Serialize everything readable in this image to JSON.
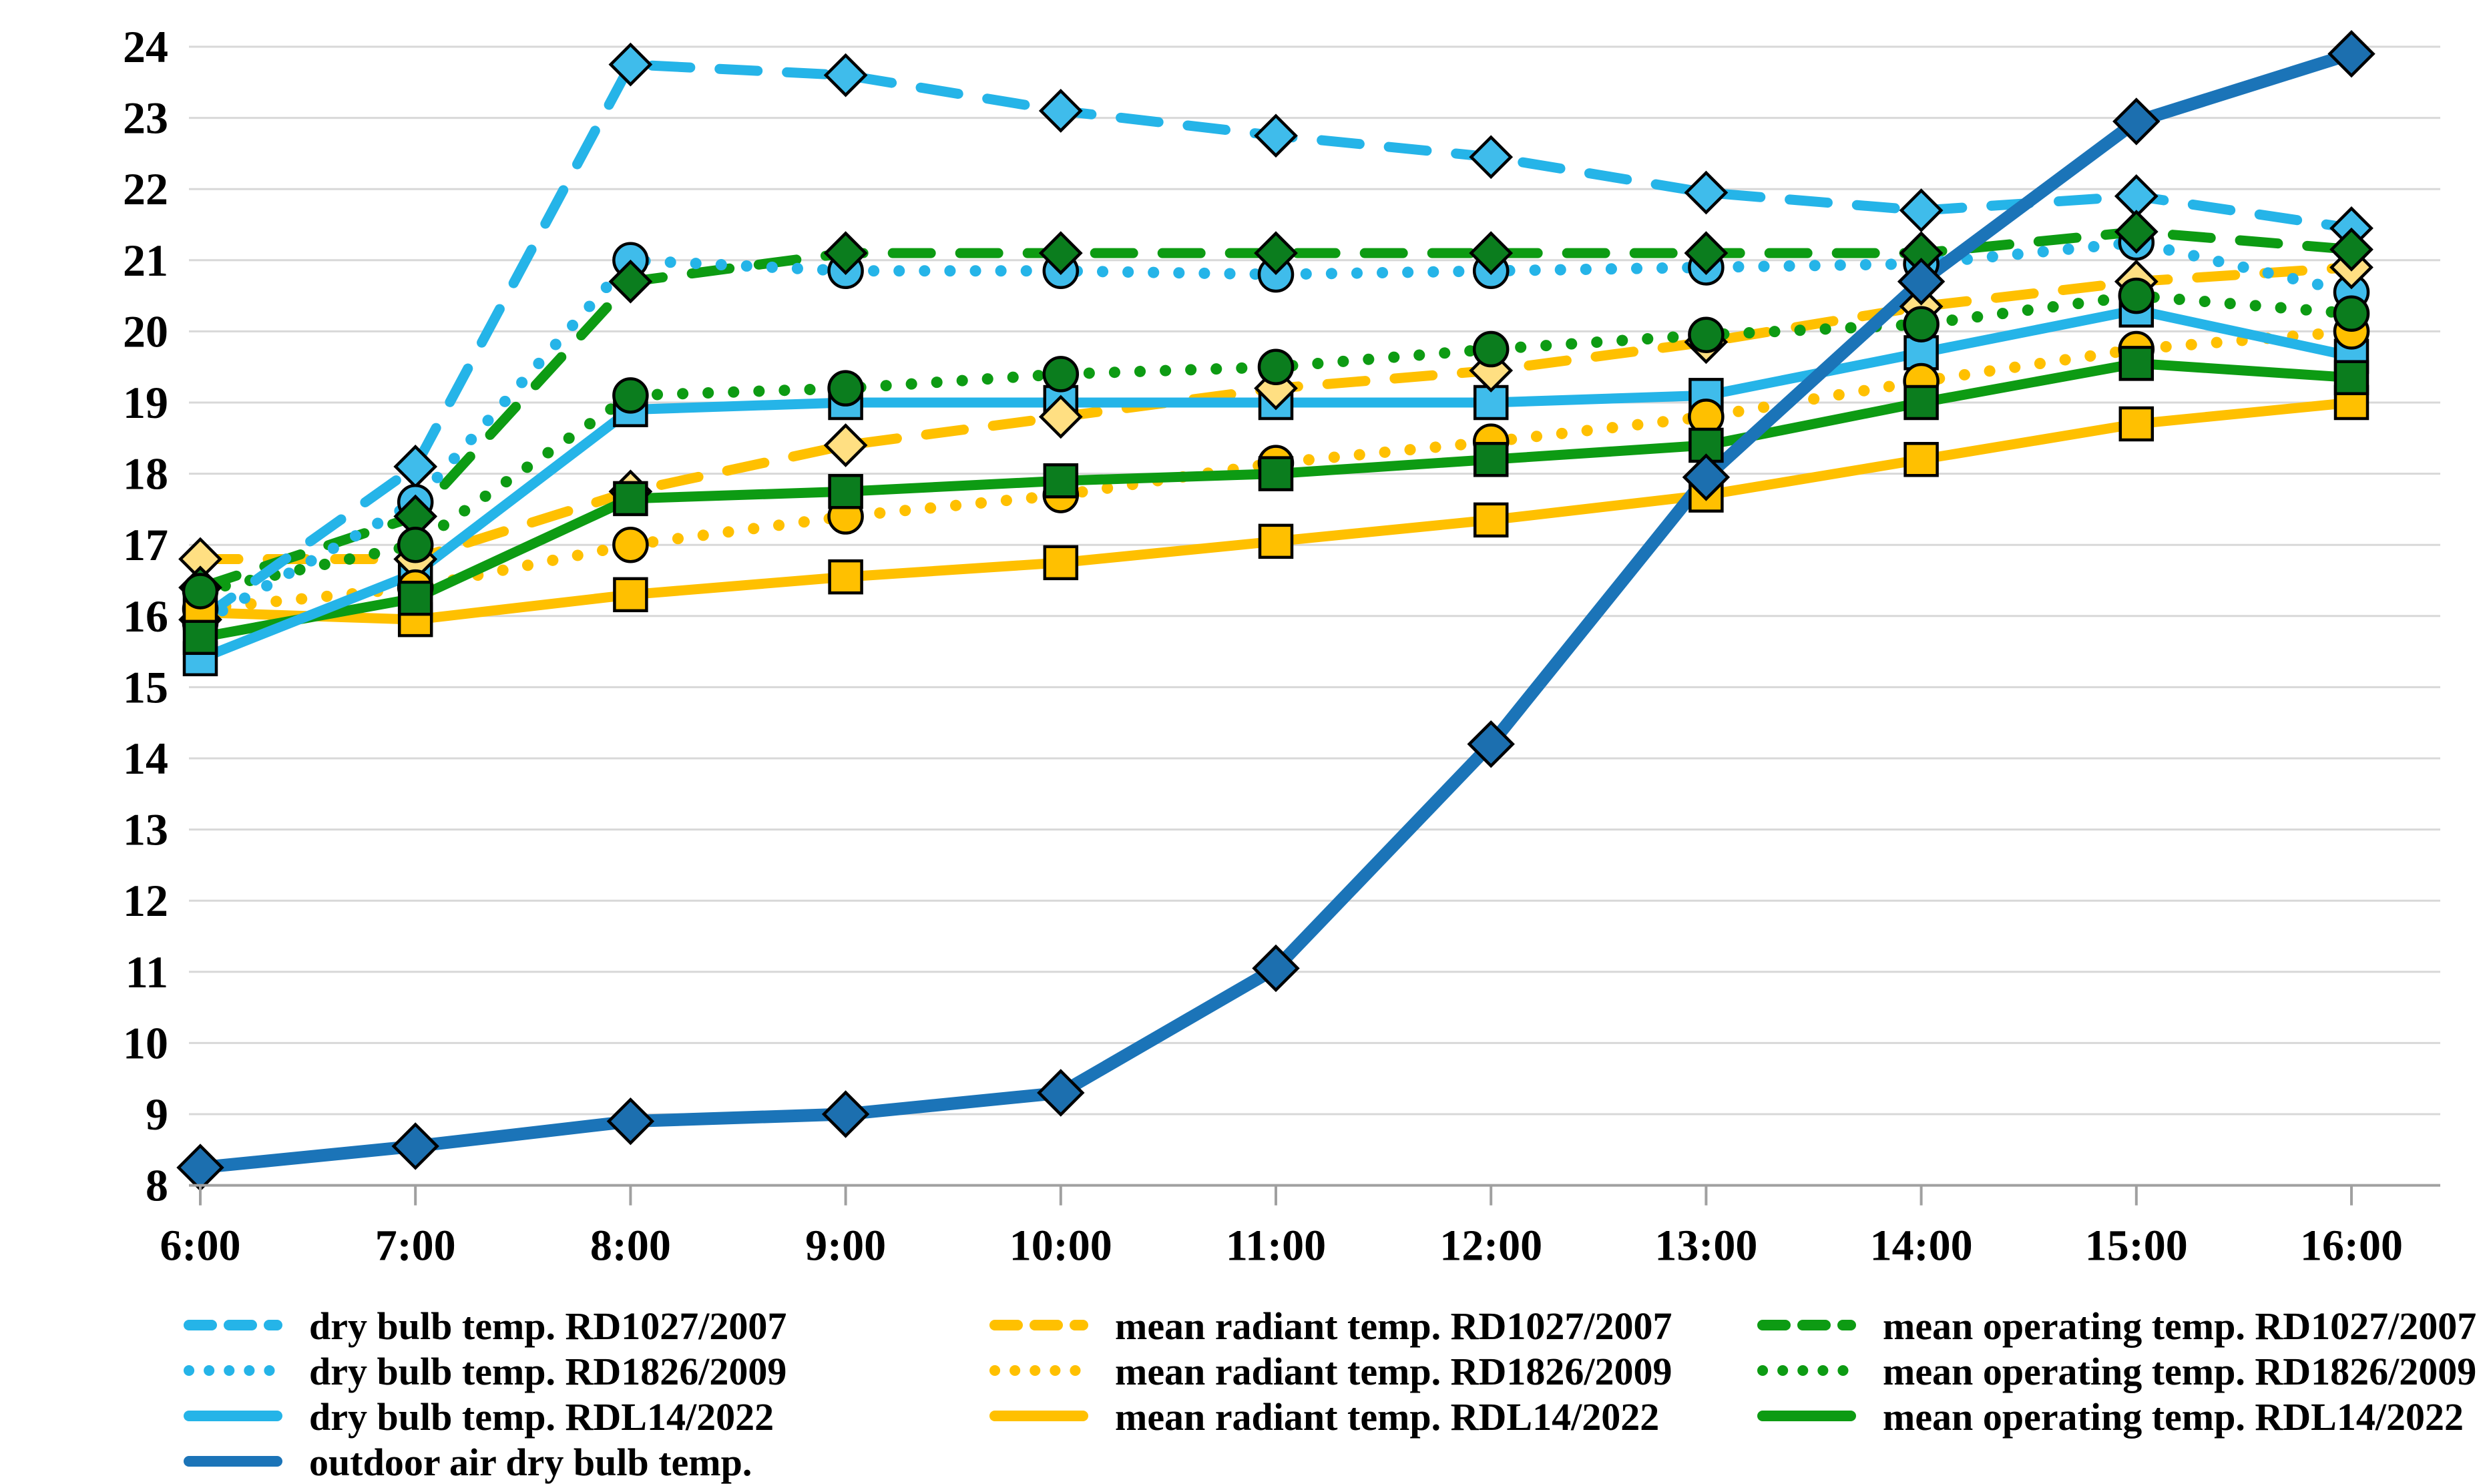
{
  "chart_data": {
    "type": "line",
    "title": "",
    "xlabel": "",
    "ylabel": "",
    "x_labels": [
      "6:00",
      "7:00",
      "8:00",
      "9:00",
      "10:00",
      "11:00",
      "12:00",
      "13:00",
      "14:00",
      "15:00",
      "16:00"
    ],
    "y_ticks": [
      8,
      9,
      10,
      11,
      12,
      13,
      14,
      15,
      16,
      17,
      18,
      19,
      20,
      21,
      22,
      23,
      24
    ],
    "ylim": [
      8,
      24
    ],
    "grid": "horizontal",
    "grid_color": "#D8D8D8",
    "axis_color": "#A0A0A0",
    "text_color": "#000000",
    "legend_position": "bottom",
    "legend_columns": [
      [
        0,
        1,
        2,
        9
      ],
      [
        3,
        4,
        5
      ],
      [
        6,
        7,
        8
      ]
    ],
    "series": [
      {
        "name": "dry bulb temp. RD1027/2007",
        "color": "#25B4E8",
        "marker_fill": "#3FBCEB",
        "line_style": "dashed",
        "marker": "diamond",
        "values": [
          15.95,
          18.1,
          23.75,
          23.6,
          23.1,
          22.75,
          22.45,
          21.95,
          21.7,
          21.9,
          21.45
        ]
      },
      {
        "name": "dry bulb temp. RD1826/2009",
        "color": "#25B4E8",
        "marker_fill": "#3FBCEB",
        "line_style": "dotted",
        "marker": "circle",
        "values": [
          15.9,
          17.6,
          21.0,
          20.85,
          20.85,
          20.8,
          20.85,
          20.9,
          20.95,
          21.25,
          20.55
        ]
      },
      {
        "name": "dry bulb temp. RDL14/2022",
        "color": "#25B4E8",
        "marker_fill": "#3FBCEB",
        "line_style": "solid",
        "marker": "square",
        "values": [
          15.4,
          16.6,
          18.9,
          19.0,
          19.0,
          19.0,
          19.0,
          19.1,
          19.7,
          20.3,
          19.65
        ]
      },
      {
        "name": "mean radiant temp. RD1027/2007",
        "color": "#FFC000",
        "marker_fill": "#FFDF82",
        "line_style": "dashed",
        "marker": "diamond",
        "values": [
          16.8,
          16.8,
          17.75,
          18.4,
          18.8,
          19.2,
          19.45,
          19.85,
          20.35,
          20.7,
          20.9
        ]
      },
      {
        "name": "mean radiant temp. RD1826/2009",
        "color": "#FFC000",
        "marker_fill": "#FFC000",
        "line_style": "dotted",
        "marker": "circle",
        "values": [
          16.1,
          16.4,
          17.0,
          17.4,
          17.7,
          18.15,
          18.45,
          18.8,
          19.3,
          19.75,
          20.0
        ]
      },
      {
        "name": "mean radiant temp. RDL14/2022",
        "color": "#FFC000",
        "marker_fill": "#FFC000",
        "line_style": "solid",
        "marker": "square",
        "values": [
          16.05,
          15.95,
          16.3,
          16.55,
          16.75,
          17.05,
          17.35,
          17.7,
          18.2,
          18.7,
          19.0
        ]
      },
      {
        "name": "mean operating temp. RD1027/2007",
        "color": "#0D9B13",
        "marker_fill": "#0B7D1E",
        "line_style": "dashed",
        "marker": "diamond",
        "values": [
          16.4,
          17.4,
          20.7,
          21.1,
          21.1,
          21.1,
          21.1,
          21.1,
          21.1,
          21.4,
          21.15
        ]
      },
      {
        "name": "mean operating temp. RD1826/2009",
        "color": "#0D9B13",
        "marker_fill": "#0B7D1E",
        "line_style": "dotted",
        "marker": "circle",
        "values": [
          16.35,
          17.0,
          19.1,
          19.2,
          19.4,
          19.5,
          19.75,
          19.95,
          20.1,
          20.5,
          20.25
        ]
      },
      {
        "name": "mean operating temp. RDL14/2022",
        "color": "#0D9B13",
        "marker_fill": "#0B7D1E",
        "line_style": "solid",
        "marker": "square",
        "values": [
          15.7,
          16.25,
          17.65,
          17.75,
          17.9,
          18.0,
          18.2,
          18.4,
          19.0,
          19.55,
          19.35
        ]
      },
      {
        "name": "outdoor air dry bulb temp.",
        "color": "#1B74B8",
        "marker_fill": "#1C6FAF",
        "line_style": "solid",
        "marker": "diamond",
        "values": [
          8.25,
          8.55,
          8.9,
          9.0,
          9.3,
          11.05,
          14.2,
          17.95,
          20.7,
          22.95,
          23.9
        ]
      }
    ]
  }
}
